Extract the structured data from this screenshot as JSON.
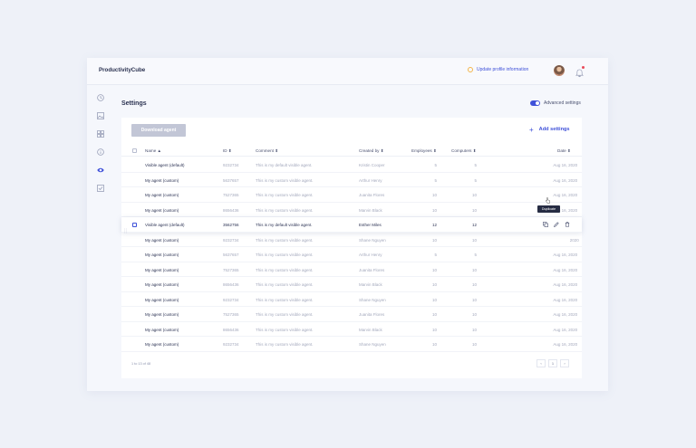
{
  "app": {
    "brand": "ProductivityCube"
  },
  "header": {
    "update_profile": "Update profile information"
  },
  "page": {
    "title": "Settings",
    "advanced_settings": "Advanced settings"
  },
  "toolbar": {
    "download_agent": "Download agent",
    "add_settings": "Add settings"
  },
  "table": {
    "headers": {
      "name": "Name ▲",
      "id": "ID ⬍",
      "comment": "Comment ⬍",
      "created_by": "Created by ⬍",
      "employees": "Employees ⬍",
      "computers": "Computers ⬍",
      "date": "Date ⬍"
    },
    "rows": [
      {
        "name": "Visible agent (default)",
        "id": "9232734",
        "comment": "This is my default visible agent.",
        "created_by": "Kristin Cooper",
        "employees": "5",
        "computers": "5",
        "date": "Aug 16, 2020"
      },
      {
        "name": "My agent (custom)",
        "id": "5637657",
        "comment": "This is my custom visible agent.",
        "created_by": "Arthur Henry",
        "employees": "5",
        "computers": "5",
        "date": "Aug 16, 2020"
      },
      {
        "name": "My agent (custom)",
        "id": "7527365",
        "comment": "This is my custom visible agent.",
        "created_by": "Juanita Flores",
        "employees": "10",
        "computers": "10",
        "date": "Aug 16, 2020"
      },
      {
        "name": "My agent (custom)",
        "id": "8656436",
        "comment": "This is my custom visible agent.",
        "created_by": "Marvin Black",
        "employees": "10",
        "computers": "10",
        "date": "Aug 16, 2020"
      },
      {
        "name": "Visible agent (default)",
        "id": "3562756",
        "comment": "This is my default visible agent.",
        "created_by": "Esther Miles",
        "employees": "12",
        "computers": "12",
        "date": ""
      },
      {
        "name": "My agent (custom)",
        "id": "9232734",
        "comment": "This is my custom visible agent.",
        "created_by": "Shane Nguyen",
        "employees": "10",
        "computers": "10",
        "date": "2020"
      },
      {
        "name": "My agent (custom)",
        "id": "5637657",
        "comment": "This is my custom visible agent.",
        "created_by": "Arthur Henry",
        "employees": "5",
        "computers": "5",
        "date": "Aug 16, 2020"
      },
      {
        "name": "My agent (custom)",
        "id": "7527365",
        "comment": "This is my custom visible agent.",
        "created_by": "Juanita Flores",
        "employees": "10",
        "computers": "10",
        "date": "Aug 16, 2020"
      },
      {
        "name": "My agent (custom)",
        "id": "8656436",
        "comment": "This is my custom visible agent.",
        "created_by": "Marvin Black",
        "employees": "10",
        "computers": "10",
        "date": "Aug 16, 2020"
      },
      {
        "name": "My agent (custom)",
        "id": "9232734",
        "comment": "This is my custom visible agent.",
        "created_by": "Shane Nguyen",
        "employees": "10",
        "computers": "10",
        "date": "Aug 16, 2020"
      },
      {
        "name": "My agent (custom)",
        "id": "7527365",
        "comment": "This is my custom visible agent.",
        "created_by": "Juanita Flores",
        "employees": "10",
        "computers": "10",
        "date": "Aug 16, 2020"
      },
      {
        "name": "My agent (custom)",
        "id": "8656436",
        "comment": "This is my custom visible agent.",
        "created_by": "Marvin Black",
        "employees": "10",
        "computers": "10",
        "date": "Aug 16, 2020"
      },
      {
        "name": "My agent (custom)",
        "id": "9232734",
        "comment": "This is my custom visible agent.",
        "created_by": "Shane Nguyen",
        "employees": "10",
        "computers": "10",
        "date": "Aug 16, 2020"
      }
    ],
    "tooltip": "Duplicate",
    "footer": "1 to 13 of 48",
    "pager": {
      "prev": "‹",
      "page": "1",
      "next": "›"
    }
  },
  "colors": {
    "accent": "#3f51d9",
    "sidebar_active": "#3f51d9",
    "icon": "#9aa0b8"
  }
}
